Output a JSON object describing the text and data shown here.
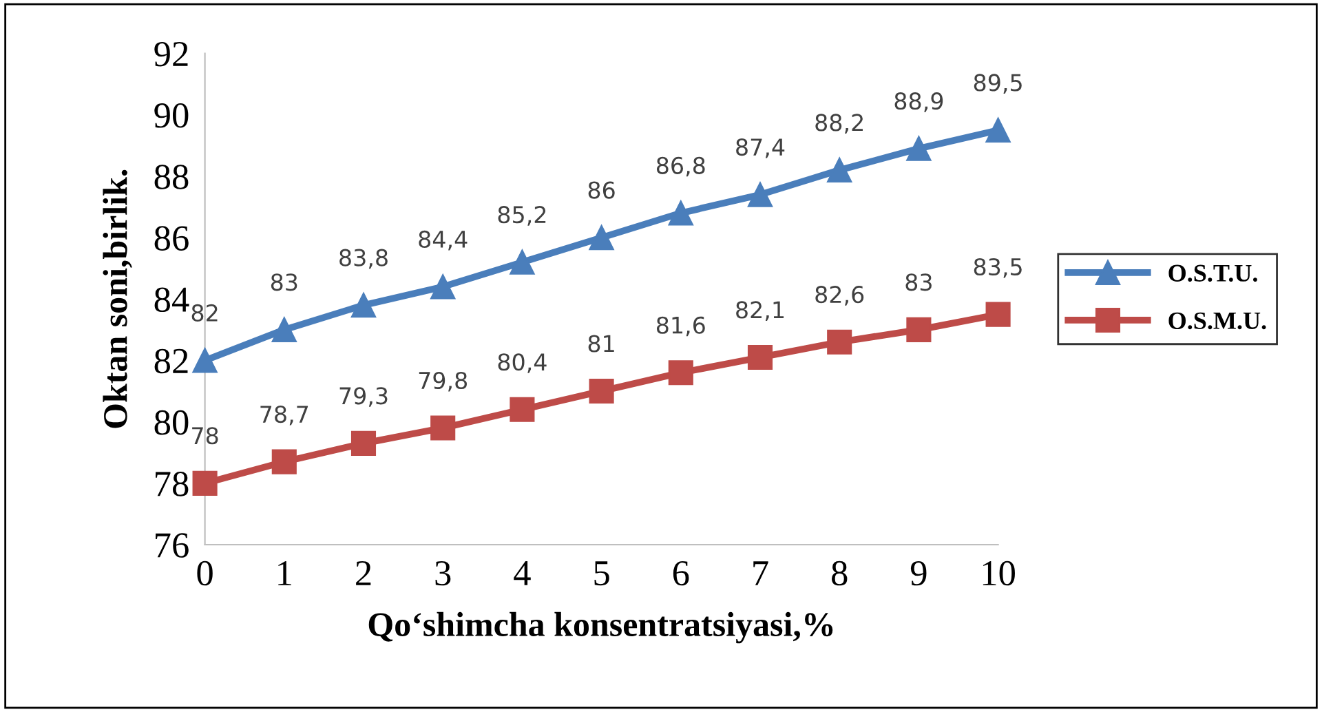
{
  "chart_data": {
    "type": "line",
    "xlabel": "Qo‘shimcha konsentratsiyasi,%",
    "ylabel": "Oktan soni,birlik.",
    "categories": [
      "0",
      "1",
      "2",
      "3",
      "4",
      "5",
      "6",
      "7",
      "8",
      "9",
      "10"
    ],
    "series": [
      {
        "name": "O.S.T.U.",
        "color": "#4a7ebb",
        "marker": "triangle",
        "values": [
          82,
          83,
          83.8,
          84.4,
          85.2,
          86,
          86.8,
          87.4,
          88.2,
          88.9,
          89.5
        ],
        "value_labels": [
          "82",
          "83",
          "83,8",
          "84,4",
          "85,2",
          "86",
          "86,8",
          "87,4",
          "88,2",
          "88,9",
          "89,5"
        ]
      },
      {
        "name": "O.S.M.U.",
        "color": "#be4b48",
        "marker": "square",
        "values": [
          78,
          78.7,
          79.3,
          79.8,
          80.4,
          81,
          81.6,
          82.1,
          82.6,
          83,
          83.5
        ],
        "value_labels": [
          "78",
          "78,7",
          "79,3",
          "79,8",
          "80,4",
          "81",
          "81,6",
          "82,1",
          "82,6",
          "83",
          "83,5"
        ]
      }
    ],
    "ylim": [
      76,
      92
    ],
    "yticks": [
      76,
      78,
      80,
      82,
      84,
      86,
      88,
      90,
      92
    ],
    "grid": false,
    "legend": "right",
    "line_style": "solid"
  }
}
